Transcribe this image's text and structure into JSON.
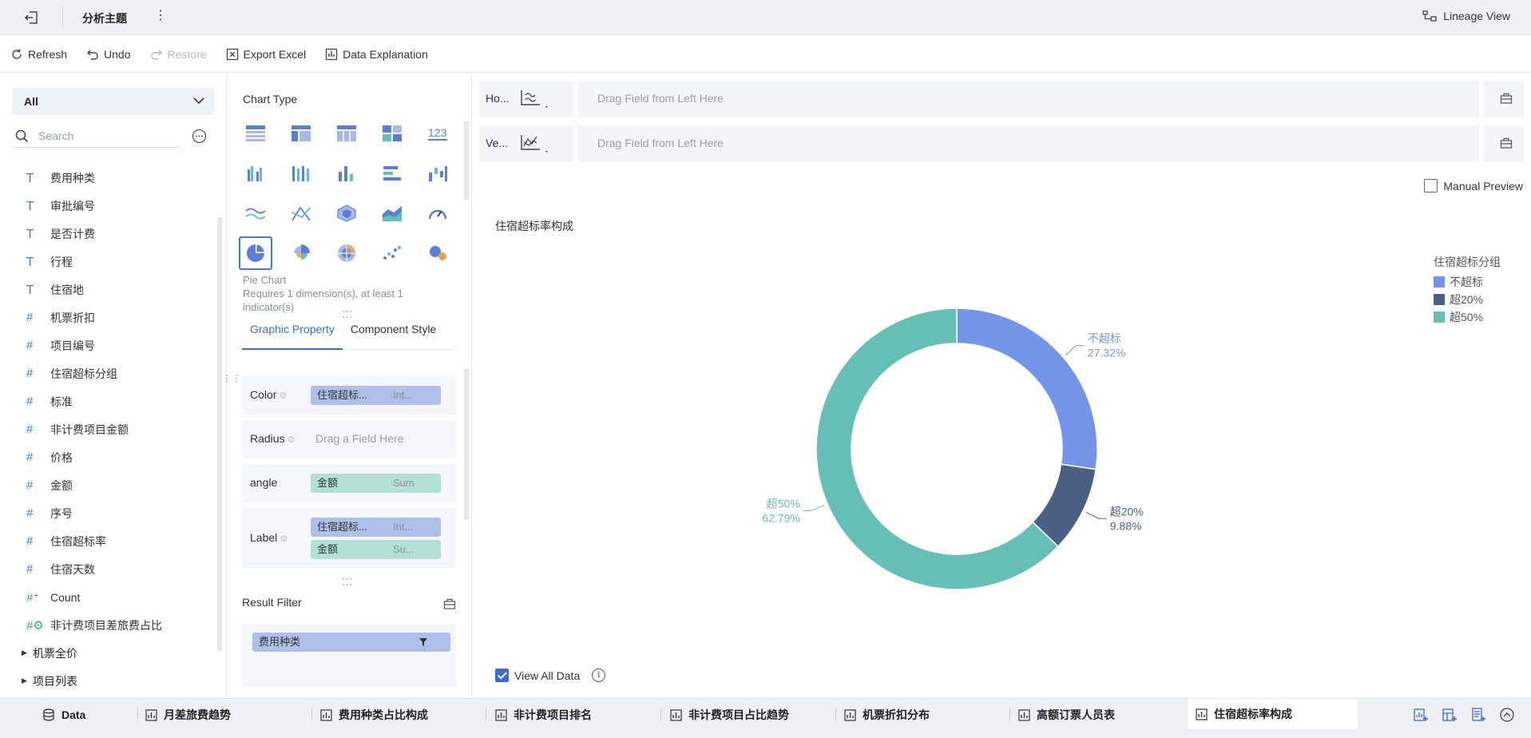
{
  "topbar": {
    "title": "分析主题",
    "more": "⋮",
    "lineage_label": "Lineage View"
  },
  "toolbar": {
    "refresh": "Refresh",
    "undo": "Undo",
    "restore": "Restore",
    "export": "Export Excel",
    "explain": "Data Explanation"
  },
  "left": {
    "select_value": "All",
    "search_placeholder": "Search",
    "fields": [
      {
        "type": "text",
        "label": "费用种类"
      },
      {
        "type": "text",
        "label": "审批编号"
      },
      {
        "type": "text",
        "label": "是否计费"
      },
      {
        "type": "text",
        "label": "行程"
      },
      {
        "type": "text",
        "label": "住宿地"
      },
      {
        "type": "number",
        "label": "机票折扣"
      },
      {
        "type": "number",
        "label": "项目编号"
      },
      {
        "type": "number",
        "label": "住宿超标分组"
      },
      {
        "type": "number",
        "label": "标准"
      },
      {
        "type": "number",
        "label": "非计费项目金额"
      },
      {
        "type": "number",
        "label": "价格"
      },
      {
        "type": "number",
        "label": "金额"
      },
      {
        "type": "number",
        "label": "序号"
      },
      {
        "type": "number",
        "label": "住宿超标率"
      },
      {
        "type": "number",
        "label": "住宿天数"
      },
      {
        "type": "calc",
        "label": "Count"
      },
      {
        "type": "calc2",
        "label": "非计费项目差旅费占比"
      }
    ],
    "groups": [
      "机票全价",
      "项目列表"
    ]
  },
  "middle": {
    "chart_type_label": "Chart Type",
    "pie_name": "Pie Chart",
    "pie_requirement": "Requires 1 dimension(s), at least 1 indicator(s)",
    "tab_graphic": "Graphic Property",
    "tab_component": "Component Style",
    "color_label": "Color",
    "color_field": "住宿超标...",
    "color_agg": "Int...",
    "radius_label": "Radius",
    "radius_hint": "Drag a Field Here",
    "angle_label": "angle",
    "angle_field": "金额",
    "angle_agg": "Sum",
    "label_label": "Label",
    "label_field1": "住宿超标...",
    "label_agg1": "Int...",
    "label_field2": "金额",
    "label_agg2": "Su...",
    "result_filter_label": "Result Filter",
    "filter_field": "费用种类"
  },
  "main": {
    "horizontal_label": "Ho...",
    "vertical_label": "Ve...",
    "drop_hint": "Drag Field from Left Here",
    "manual_preview": "Manual Preview",
    "view_all": "View All Data",
    "info_glyph": "i"
  },
  "chart_data": {
    "type": "pie",
    "title": "住宿超标率构成",
    "legend_title": "住宿超标分组",
    "legend_position": "top-right",
    "donut": true,
    "categories": [
      "不超标",
      "超20%",
      "超50%"
    ],
    "values": [
      27.32,
      9.88,
      62.79
    ],
    "value_labels": [
      "27.32%",
      "9.88%",
      "62.79%"
    ],
    "colors": [
      "#7494e8",
      "#4b5f82",
      "#66bfb4"
    ]
  },
  "bottom_tabs": [
    {
      "label": "Data",
      "active": false
    },
    {
      "label": "月差旅费趋势",
      "active": false
    },
    {
      "label": "费用种类占比构成",
      "active": false
    },
    {
      "label": "非计费项目排名",
      "active": false
    },
    {
      "label": "非计费项目占比趋势",
      "active": false
    },
    {
      "label": "机票折扣分布",
      "active": false
    },
    {
      "label": "高额订票人员表",
      "active": false
    },
    {
      "label": "住宿超标率构成",
      "active": true
    }
  ]
}
